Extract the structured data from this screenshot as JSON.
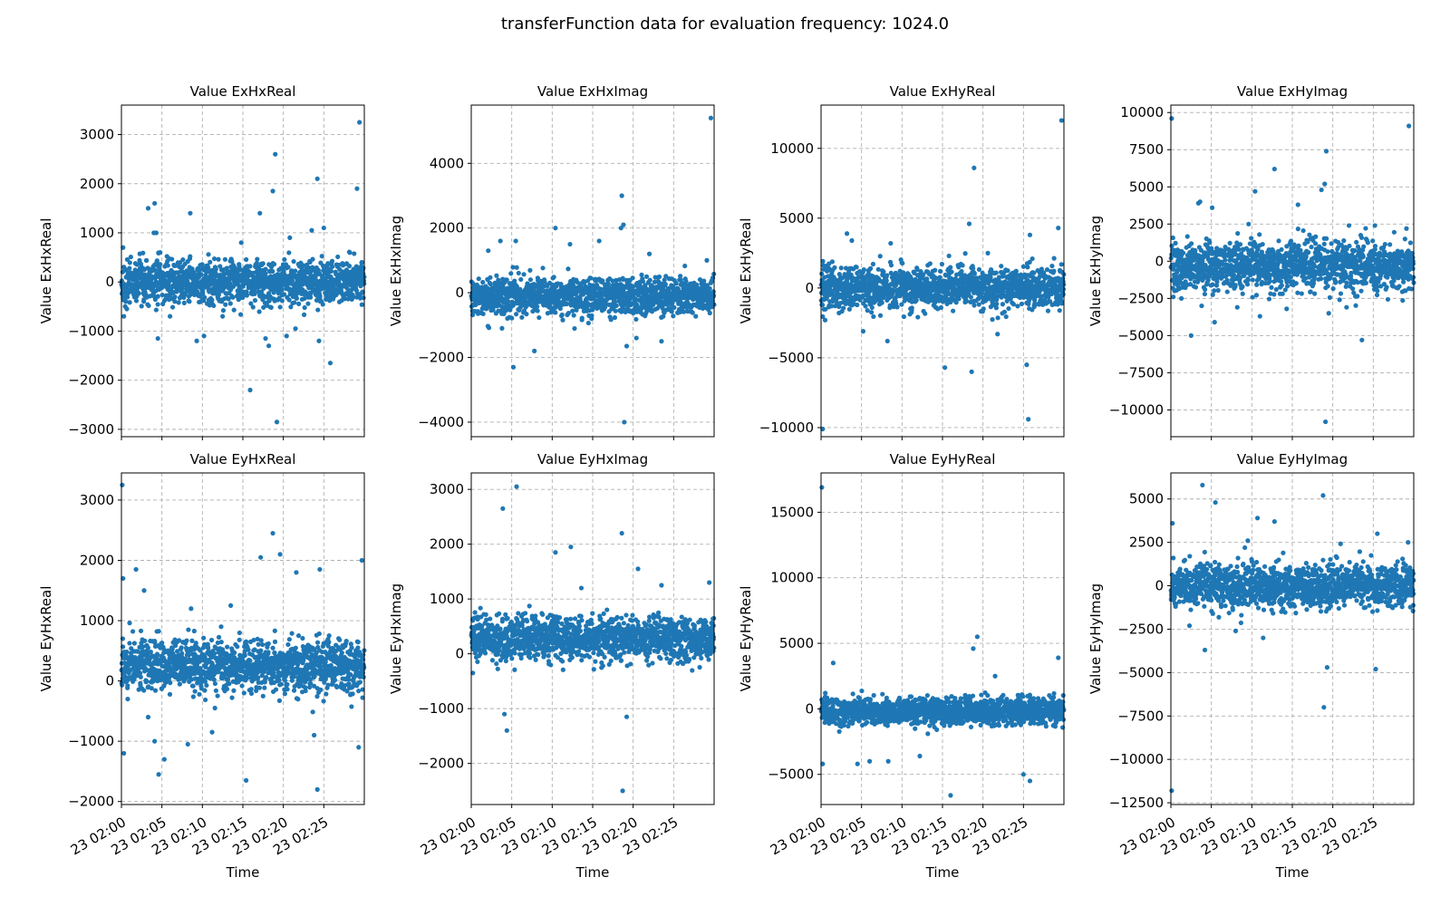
{
  "figure": {
    "title": "transferFunction data for evaluation frequency: 1024.0",
    "point_color": "#1f77b4"
  },
  "x_ticks": [
    "23 02:00",
    "23 02:05",
    "23 02:10",
    "23 02:15",
    "23 02:20",
    "23 02:25"
  ],
  "x_label": "Time",
  "chart_data": [
    {
      "type": "scatter",
      "title": "Value ExHxReal",
      "ylabel": "Value ExHxReal",
      "xlabel": "",
      "xlim": [
        0,
        30
      ],
      "ylim": [
        -3150,
        3600
      ],
      "yticks": [
        3000,
        2000,
        1000,
        0,
        -1000,
        -2000,
        -3000
      ],
      "ytick_labels": [
        "3000",
        "2000",
        "1000",
        "0",
        "−1000",
        "−2000",
        "−3000"
      ],
      "x_unit": "minutes after 23 02:00",
      "band": {
        "center": 0,
        "spread": 220
      },
      "outliers": [
        [
          0.2,
          700
        ],
        [
          0.3,
          -700
        ],
        [
          2.5,
          300
        ],
        [
          4.0,
          1000
        ],
        [
          4.3,
          1000
        ],
        [
          3.3,
          1500
        ],
        [
          4.1,
          1600
        ],
        [
          4.5,
          -1150
        ],
        [
          6.0,
          -700
        ],
        [
          8.5,
          1400
        ],
        [
          9.3,
          -1200
        ],
        [
          10.2,
          -1100
        ],
        [
          12.5,
          -700
        ],
        [
          14.8,
          800
        ],
        [
          15.9,
          -2200
        ],
        [
          17.1,
          1400
        ],
        [
          17.8,
          -1150
        ],
        [
          18.2,
          -1300
        ],
        [
          18.7,
          1850
        ],
        [
          19.0,
          2600
        ],
        [
          19.2,
          -2850
        ],
        [
          20.4,
          -1100
        ],
        [
          20.8,
          900
        ],
        [
          21.5,
          -950
        ],
        [
          23.5,
          1050
        ],
        [
          24.2,
          2100
        ],
        [
          24.4,
          -1200
        ],
        [
          25.0,
          1100
        ],
        [
          25.8,
          -1650
        ],
        [
          29.1,
          1900
        ],
        [
          29.4,
          3250
        ],
        [
          29.7,
          400
        ]
      ]
    },
    {
      "type": "scatter",
      "title": "Value ExHxImag",
      "ylabel": "Value ExHxImag",
      "xlabel": "",
      "xlim": [
        0,
        30
      ],
      "ylim": [
        -4450,
        5800
      ],
      "yticks": [
        4000,
        2000,
        0,
        -2000,
        -4000
      ],
      "ytick_labels": [
        "4000",
        "2000",
        "0",
        "−2000",
        "−4000"
      ],
      "x_unit": "minutes after 23 02:00",
      "band": {
        "center": -100,
        "spread": 280
      },
      "outliers": [
        [
          2.1,
          1300
        ],
        [
          3.6,
          1600
        ],
        [
          3.8,
          -1100
        ],
        [
          5.2,
          -2300
        ],
        [
          5.5,
          1600
        ],
        [
          7.8,
          -1800
        ],
        [
          10.4,
          2000
        ],
        [
          12.2,
          1500
        ],
        [
          15.8,
          1600
        ],
        [
          18.5,
          2000
        ],
        [
          18.6,
          3000
        ],
        [
          18.8,
          2100
        ],
        [
          18.9,
          -4000
        ],
        [
          19.2,
          -1650
        ],
        [
          20.4,
          -1400
        ],
        [
          22.0,
          1200
        ],
        [
          23.5,
          -1500
        ],
        [
          29.1,
          1000
        ],
        [
          29.6,
          5400
        ]
      ]
    },
    {
      "type": "scatter",
      "title": "Value ExHyReal",
      "ylabel": "Value ExHyReal",
      "xlabel": "",
      "xlim": [
        0,
        30
      ],
      "ylim": [
        -10650,
        13100
      ],
      "yticks": [
        10000,
        5000,
        0,
        -5000,
        -10000
      ],
      "ytick_labels": [
        "10000",
        "5000",
        "0",
        "−5000",
        "−10000"
      ],
      "x_unit": "minutes after 23 02:00",
      "band": {
        "center": 0,
        "spread": 750
      },
      "outliers": [
        [
          0.2,
          -10100
        ],
        [
          0.5,
          -2300
        ],
        [
          3.2,
          3900
        ],
        [
          3.8,
          3400
        ],
        [
          5.2,
          -3100
        ],
        [
          8.2,
          -3800
        ],
        [
          8.6,
          3200
        ],
        [
          10.0,
          1800
        ],
        [
          15.3,
          -5700
        ],
        [
          15.8,
          2300
        ],
        [
          18.3,
          4600
        ],
        [
          18.6,
          -6000
        ],
        [
          18.9,
          8600
        ],
        [
          20.6,
          2500
        ],
        [
          21.8,
          -3300
        ],
        [
          25.4,
          -5500
        ],
        [
          25.6,
          -9400
        ],
        [
          25.8,
          3800
        ],
        [
          29.3,
          4300
        ],
        [
          29.7,
          12000
        ]
      ]
    },
    {
      "type": "scatter",
      "title": "Value ExHyImag",
      "ylabel": "Value ExHyImag",
      "xlabel": "",
      "xlim": [
        0,
        30
      ],
      "ylim": [
        -11800,
        10500
      ],
      "yticks": [
        10000,
        7500,
        5000,
        2500,
        0,
        -2500,
        -5000,
        -7500,
        -10000
      ],
      "ytick_labels": [
        "10000",
        "7500",
        "5000",
        "2500",
        "0",
        "−2500",
        "−5000",
        "−7500",
        "−10000"
      ],
      "x_unit": "minutes after 23 02:00",
      "band": {
        "center": -300,
        "spread": 800
      },
      "outliers": [
        [
          0.1,
          9600
        ],
        [
          0.3,
          -2400
        ],
        [
          1.3,
          -2500
        ],
        [
          2.5,
          -5000
        ],
        [
          3.4,
          3900
        ],
        [
          3.6,
          4000
        ],
        [
          3.8,
          -3000
        ],
        [
          5.1,
          3600
        ],
        [
          5.4,
          -4100
        ],
        [
          8.2,
          -3100
        ],
        [
          9.6,
          2500
        ],
        [
          10.4,
          4700
        ],
        [
          11.0,
          -3700
        ],
        [
          12.8,
          6200
        ],
        [
          14.3,
          -3200
        ],
        [
          15.7,
          3800
        ],
        [
          18.6,
          4800
        ],
        [
          19.0,
          5200
        ],
        [
          19.2,
          7400
        ],
        [
          19.1,
          -10800
        ],
        [
          19.5,
          -3500
        ],
        [
          21.7,
          -3100
        ],
        [
          22.0,
          2400
        ],
        [
          23.6,
          -5300
        ],
        [
          25.2,
          2400
        ],
        [
          29.1,
          2200
        ],
        [
          29.4,
          9100
        ]
      ]
    },
    {
      "type": "scatter",
      "title": "Value EyHxReal",
      "ylabel": "Value EyHxReal",
      "xlabel": "Time",
      "xlim": [
        0,
        30
      ],
      "ylim": [
        -2050,
        3450
      ],
      "yticks": [
        3000,
        2000,
        1000,
        0,
        -1000,
        -2000
      ],
      "ytick_labels": [
        "3000",
        "2000",
        "1000",
        "0",
        "−1000",
        "−2000"
      ],
      "x_unit": "minutes after 23 02:00",
      "band": {
        "center": 250,
        "spread": 200
      },
      "outliers": [
        [
          0.1,
          3250
        ],
        [
          0.2,
          1700
        ],
        [
          0.3,
          -1200
        ],
        [
          1.8,
          1850
        ],
        [
          2.8,
          1500
        ],
        [
          3.3,
          -600
        ],
        [
          4.1,
          -1000
        ],
        [
          4.6,
          -1550
        ],
        [
          5.3,
          -1300
        ],
        [
          8.2,
          -1050
        ],
        [
          8.6,
          1200
        ],
        [
          11.2,
          -850
        ],
        [
          13.5,
          1250
        ],
        [
          15.4,
          -1650
        ],
        [
          17.2,
          2050
        ],
        [
          18.7,
          2450
        ],
        [
          19.6,
          2100
        ],
        [
          21.6,
          1800
        ],
        [
          23.8,
          -900
        ],
        [
          24.2,
          -1800
        ],
        [
          24.5,
          1850
        ],
        [
          29.3,
          -1100
        ],
        [
          29.7,
          2000
        ]
      ]
    },
    {
      "type": "scatter",
      "title": "Value EyHxImag",
      "ylabel": "Value EyHxImag",
      "xlabel": "Time",
      "xlim": [
        0,
        30
      ],
      "ylim": [
        -2750,
        3300
      ],
      "yticks": [
        3000,
        2000,
        1000,
        0,
        -1000,
        -2000
      ],
      "ytick_labels": [
        "3000",
        "2000",
        "1000",
        "0",
        "−1000",
        "−2000"
      ],
      "x_unit": "minutes after 23 02:00",
      "band": {
        "center": 280,
        "spread": 200
      },
      "outliers": [
        [
          0.2,
          -350
        ],
        [
          3.9,
          2650
        ],
        [
          4.1,
          -1100
        ],
        [
          4.4,
          -1400
        ],
        [
          5.6,
          3050
        ],
        [
          10.4,
          1850
        ],
        [
          12.3,
          1950
        ],
        [
          13.6,
          1200
        ],
        [
          18.6,
          2200
        ],
        [
          18.7,
          -2500
        ],
        [
          19.2,
          -1150
        ],
        [
          20.6,
          1550
        ],
        [
          23.5,
          1250
        ],
        [
          29.4,
          1300
        ]
      ]
    },
    {
      "type": "scatter",
      "title": "Value EyHyReal",
      "ylabel": "Value EyHyReal",
      "xlabel": "Time",
      "xlim": [
        0,
        30
      ],
      "ylim": [
        -7300,
        18000
      ],
      "yticks": [
        15000,
        10000,
        5000,
        0,
        -5000
      ],
      "ytick_labels": [
        "15000",
        "10000",
        "5000",
        "0",
        "−5000"
      ],
      "x_unit": "minutes after 23 02:00",
      "band": {
        "center": -200,
        "spread": 500
      },
      "outliers": [
        [
          0.1,
          16900
        ],
        [
          0.2,
          -4200
        ],
        [
          1.5,
          3500
        ],
        [
          4.5,
          -4200
        ],
        [
          6.0,
          -4000
        ],
        [
          8.3,
          -4000
        ],
        [
          12.2,
          -3600
        ],
        [
          16.0,
          -6600
        ],
        [
          18.8,
          4600
        ],
        [
          19.3,
          5500
        ],
        [
          21.5,
          2500
        ],
        [
          25.0,
          -5000
        ],
        [
          25.8,
          -5500
        ],
        [
          29.3,
          3900
        ]
      ]
    },
    {
      "type": "scatter",
      "title": "Value EyHyImag",
      "ylabel": "Value EyHyImag",
      "xlabel": "Time",
      "xlim": [
        0,
        30
      ],
      "ylim": [
        -12600,
        6500
      ],
      "yticks": [
        5000,
        2500,
        0,
        -2500,
        -5000,
        -7500,
        -10000,
        -12500
      ],
      "ytick_labels": [
        "5000",
        "2500",
        "0",
        "−2500",
        "−5000",
        "−7500",
        "−10000",
        "−12500"
      ],
      "x_unit": "minutes after 23 02:00",
      "band": {
        "center": 0,
        "spread": 600
      },
      "outliers": [
        [
          0.1,
          -11800
        ],
        [
          0.2,
          3600
        ],
        [
          0.3,
          1600
        ],
        [
          2.3,
          -2300
        ],
        [
          3.9,
          5800
        ],
        [
          4.2,
          -3700
        ],
        [
          5.5,
          4800
        ],
        [
          8.0,
          -2600
        ],
        [
          9.5,
          2600
        ],
        [
          10.7,
          3900
        ],
        [
          11.4,
          -3000
        ],
        [
          12.8,
          3700
        ],
        [
          18.8,
          5200
        ],
        [
          18.9,
          -7000
        ],
        [
          19.3,
          -4700
        ],
        [
          25.3,
          -4800
        ],
        [
          25.5,
          3000
        ],
        [
          29.3,
          2500
        ]
      ]
    }
  ]
}
